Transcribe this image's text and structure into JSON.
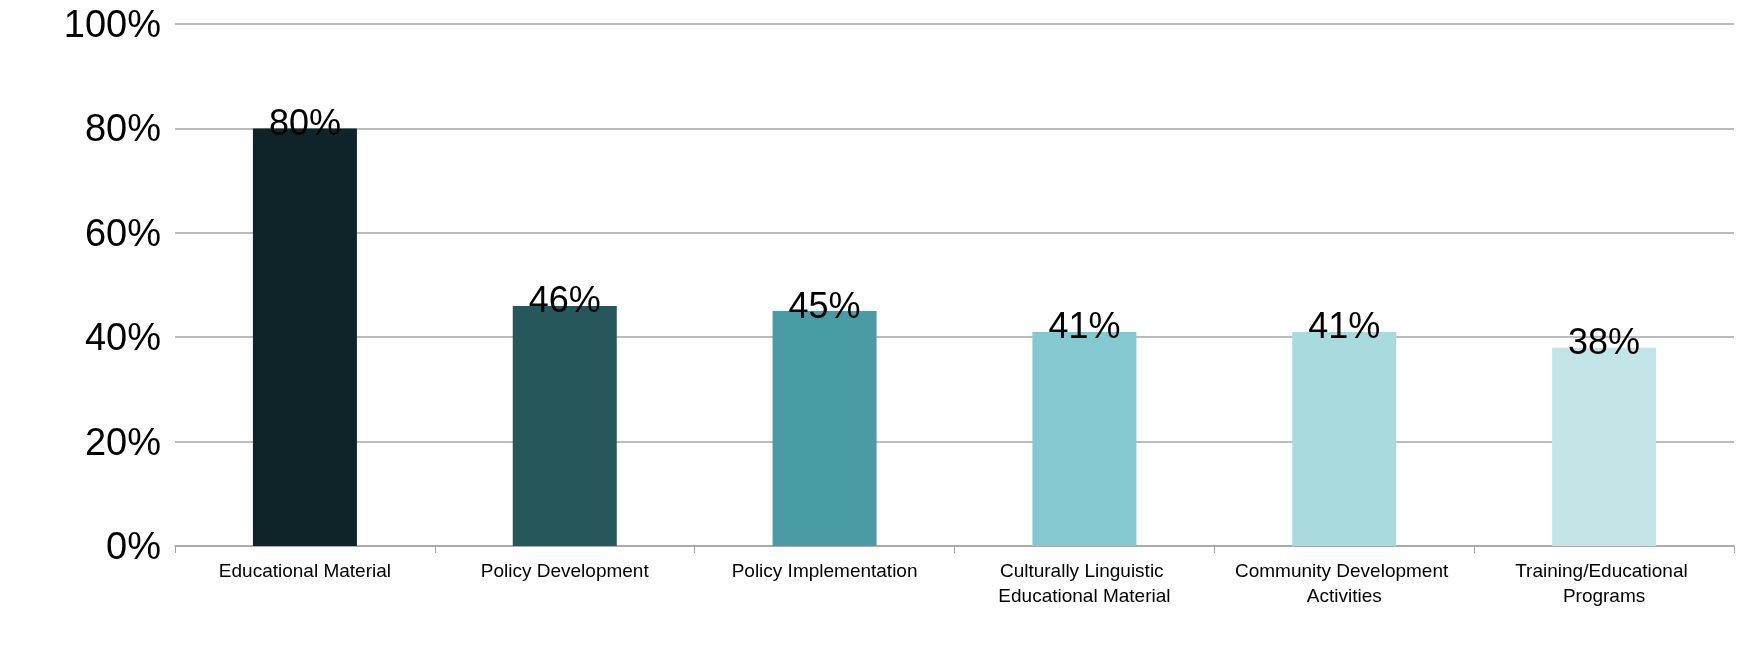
{
  "chart_data": {
    "type": "bar",
    "categories": [
      "Educational Material",
      "Policy Development",
      "Policy Implementation",
      "Culturally Linguistic Educational Material",
      "Community Development Activities",
      "Training/Educational Programs"
    ],
    "values": [
      80,
      46,
      45,
      41,
      41,
      38
    ],
    "colors": [
      "#0e2428",
      "#25575b",
      "#4a9ca4",
      "#84c9cf",
      "#a9dade",
      "#c4e5e7"
    ],
    "value_labels": [
      "80%",
      "46%",
      "45%",
      "41%",
      "41%",
      "38%"
    ],
    "ylim": [
      0,
      100
    ],
    "yticks": [
      {
        "value": 0,
        "label": "0%"
      },
      {
        "value": 20,
        "label": "20%"
      },
      {
        "value": 40,
        "label": "40%"
      },
      {
        "value": 60,
        "label": "60%"
      },
      {
        "value": 80,
        "label": "80%"
      },
      {
        "value": 100,
        "label": "100%"
      }
    ],
    "grid": "y"
  }
}
